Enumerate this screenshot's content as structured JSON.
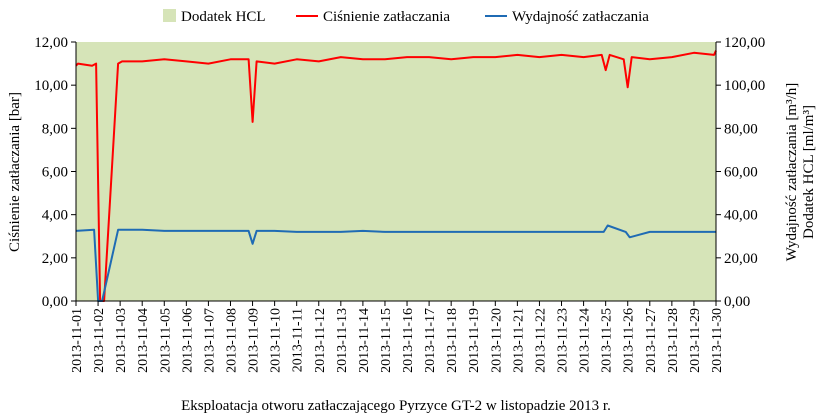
{
  "chart_data": {
    "type": "line",
    "title": "",
    "xlabel": "Eksploatacja otworu zatłaczającego Pyrzyce GT-2 w listopadzie 2013 r.",
    "ylabel_left": "Ciśnienie zatłaczania [bar]",
    "ylabel_right_1": "Wydajność zatłaczania [m³/h]",
    "ylabel_right_2": "Dodatek HCL [ml/m³]",
    "ylim_left": [
      0,
      12
    ],
    "ylim_right": [
      0,
      120
    ],
    "yticks_left": [
      "0,00",
      "2,00",
      "4,00",
      "6,00",
      "8,00",
      "10,00",
      "12,00"
    ],
    "yticks_right": [
      "0,00",
      "20,00",
      "40,00",
      "60,00",
      "80,00",
      "100,00",
      "120,00"
    ],
    "x_range": [
      "2013-11-01",
      "2013-11-30"
    ],
    "categories": [
      "2013-11-01",
      "2013-11-02",
      "2013-11-03",
      "2013-11-04",
      "2013-11-05",
      "2013-11-06",
      "2013-11-07",
      "2013-11-08",
      "2013-11-09",
      "2013-11-10",
      "2013-11-11",
      "2013-11-12",
      "2013-11-13",
      "2013-11-14",
      "2013-11-15",
      "2013-11-16",
      "2013-11-17",
      "2013-11-18",
      "2013-11-19",
      "2013-11-20",
      "2013-11-21",
      "2013-11-22",
      "2013-11-23",
      "2013-11-24",
      "2013-11-25",
      "2013-11-26",
      "2013-11-27",
      "2013-11-28",
      "2013-11-29",
      "2013-11-30"
    ],
    "legend_position": "top",
    "grid": false,
    "series": [
      {
        "name": "Dodatek HCL",
        "type": "area",
        "axis": "right",
        "color": "#d6e4b8",
        "x": [
          "2013-11-01",
          "2013-11-30"
        ],
        "values": [
          120,
          120
        ]
      },
      {
        "name": "Ciśnienie zatłaczania",
        "type": "line",
        "axis": "left",
        "color": "#ff0000",
        "x": [
          "2013-11-01",
          "2013-11-01",
          "2013-11-02",
          "2013-11-02",
          "2013-11-02",
          "2013-11-02",
          "2013-11-03",
          "2013-11-03",
          "2013-11-04",
          "2013-11-05",
          "2013-11-06",
          "2013-11-07",
          "2013-11-08",
          "2013-11-09",
          "2013-11-09",
          "2013-11-09",
          "2013-11-10",
          "2013-11-11",
          "2013-11-12",
          "2013-11-13",
          "2013-11-14",
          "2013-11-15",
          "2013-11-16",
          "2013-11-17",
          "2013-11-18",
          "2013-11-19",
          "2013-11-20",
          "2013-11-21",
          "2013-11-22",
          "2013-11-23",
          "2013-11-24",
          "2013-11-25",
          "2013-11-25",
          "2013-11-25",
          "2013-11-26",
          "2013-11-26",
          "2013-11-26",
          "2013-11-27",
          "2013-11-28",
          "2013-11-29",
          "2013-11-30",
          "2013-11-30"
        ],
        "values": [
          10.9,
          11.0,
          10.9,
          11.0,
          0.0,
          0.0,
          11.0,
          11.1,
          11.1,
          11.2,
          11.1,
          11.0,
          11.2,
          11.2,
          8.3,
          11.1,
          11.0,
          11.2,
          11.1,
          11.3,
          11.2,
          11.2,
          11.3,
          11.3,
          11.2,
          11.3,
          11.3,
          11.4,
          11.3,
          11.4,
          11.3,
          11.4,
          10.7,
          11.4,
          11.2,
          9.9,
          11.3,
          11.2,
          11.3,
          11.5,
          11.4,
          11.6
        ]
      },
      {
        "name": "Wydajność zatłaczania",
        "type": "line",
        "axis": "right",
        "color": "#1f6bb4",
        "x": [
          "2013-11-01",
          "2013-11-02",
          "2013-11-02",
          "2013-11-02",
          "2013-11-03",
          "2013-11-03",
          "2013-11-04",
          "2013-11-05",
          "2013-11-06",
          "2013-11-07",
          "2013-11-08",
          "2013-11-09",
          "2013-11-09",
          "2013-11-09",
          "2013-11-10",
          "2013-11-11",
          "2013-11-12",
          "2013-11-13",
          "2013-11-14",
          "2013-11-15",
          "2013-11-16",
          "2013-11-17",
          "2013-11-18",
          "2013-11-19",
          "2013-11-20",
          "2013-11-21",
          "2013-11-22",
          "2013-11-23",
          "2013-11-24",
          "2013-11-25",
          "2013-11-25",
          "2013-11-26",
          "2013-11-26",
          "2013-11-27",
          "2013-11-28",
          "2013-11-29",
          "2013-11-30"
        ],
        "values": [
          32.5,
          33.0,
          0.0,
          0.0,
          33.0,
          33.0,
          33.0,
          32.5,
          32.5,
          32.5,
          32.5,
          32.5,
          26.5,
          32.5,
          32.5,
          32.0,
          32.0,
          32.0,
          32.5,
          32.0,
          32.0,
          32.0,
          32.0,
          32.0,
          32.0,
          32.0,
          32.0,
          32.0,
          32.0,
          32.0,
          35.0,
          32.0,
          29.5,
          32.0,
          32.0,
          32.0,
          32.0
        ]
      }
    ]
  }
}
